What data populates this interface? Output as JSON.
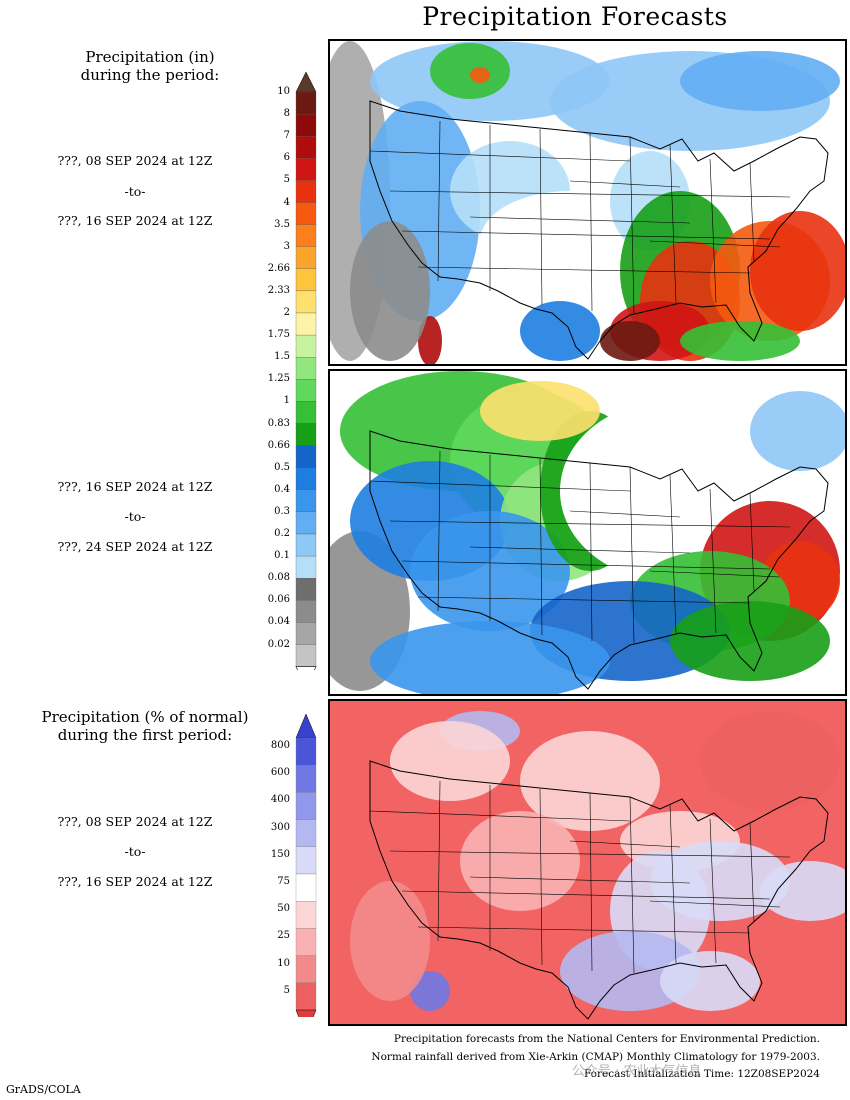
{
  "title": "Precipitation Forecasts",
  "panel1": {
    "heading_line1": "Precipitation (in)",
    "heading_line2": "during the period:",
    "start": "???, 08 SEP 2024 at 12Z",
    "to": "-to-",
    "end": "???, 16 SEP 2024 at 12Z"
  },
  "panel2": {
    "start": "???, 16 SEP 2024 at 12Z",
    "to": "-to-",
    "end": "???, 24 SEP 2024 at 12Z"
  },
  "panel3": {
    "heading_line1": "Precipitation (% of normal)",
    "heading_line2": "during the first period:",
    "start": "???, 08 SEP 2024 at 12Z",
    "to": "-to-",
    "end": "???, 16 SEP 2024 at 12Z"
  },
  "precip_colorbar": {
    "labels": [
      "10",
      "8",
      "7",
      "6",
      "5",
      "4",
      "3.5",
      "3",
      "2.66",
      "2.33",
      "2",
      "1.75",
      "1.5",
      "1.25",
      "1",
      "0.83",
      "0.66",
      "0.5",
      "0.4",
      "0.3",
      "0.2",
      "0.1",
      "0.08",
      "0.06",
      "0.04",
      "0.02"
    ],
    "colors": [
      "#6b1a12",
      "#8e0a0a",
      "#b00c0c",
      "#d01515",
      "#e8320f",
      "#f55a10",
      "#fb7f1c",
      "#fba42b",
      "#fcc53c",
      "#fde06e",
      "#fdf3a6",
      "#c7f3a0",
      "#92e67f",
      "#5fd85b",
      "#35c035",
      "#17a017",
      "#1565c8",
      "#1e7ee0",
      "#3a96ec",
      "#62aef3",
      "#8ec8f6",
      "#b4dff8",
      "#6e6e6e",
      "#8c8c8c",
      "#a6a6a6",
      "#c4c4c4"
    ],
    "top_color": "#5a3a2a"
  },
  "pct_colorbar": {
    "labels": [
      "800",
      "600",
      "400",
      "300",
      "150",
      "75",
      "50",
      "25",
      "10",
      "5"
    ],
    "colors": [
      "#4b55d8",
      "#6f78e2",
      "#9197ea",
      "#b4b8f0",
      "#d8daf7",
      "#ffffff",
      "#fcd6d6",
      "#f9b1b1",
      "#f38a8a",
      "#ec6060"
    ],
    "top_color": "#3a40d0",
    "bottom_color": "#e23a3a"
  },
  "credits": {
    "line1": "Precipitation forecasts from the National Centers for Environmental Prediction.",
    "line2": "Normal rainfall derived from Xie-Arkin (CMAP) Monthly Climatology for 1979-2003.",
    "line3": "Forecast Initialization Time: 12Z08SEP2024"
  },
  "watermark": "公众号 · 农业大气信息",
  "software": "GrADS/COLA"
}
